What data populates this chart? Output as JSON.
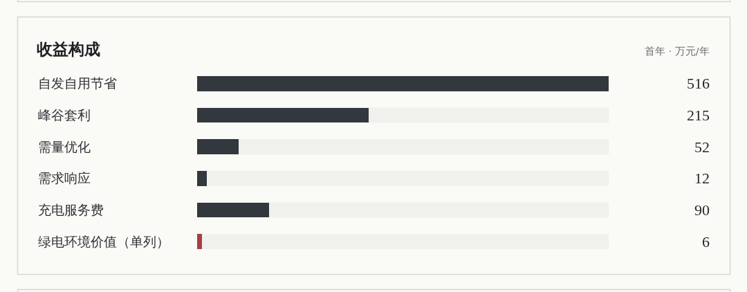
{
  "chart_data": {
    "type": "bar",
    "orientation": "horizontal",
    "title": "收益构成",
    "subtitle": "首年 · 万元/年",
    "categories": [
      "自发自用节省",
      "峰谷套利",
      "需量优化",
      "需求响应",
      "充电服务费",
      "绿电环境价值（单列）"
    ],
    "values": [
      516,
      215,
      52,
      12,
      90,
      6
    ],
    "colors": [
      "#33373e",
      "#33373e",
      "#33373e",
      "#33373e",
      "#33373e",
      "#a83f42"
    ],
    "xlim": [
      0,
      516
    ],
    "data_labels": true,
    "tick_labels": "y"
  }
}
